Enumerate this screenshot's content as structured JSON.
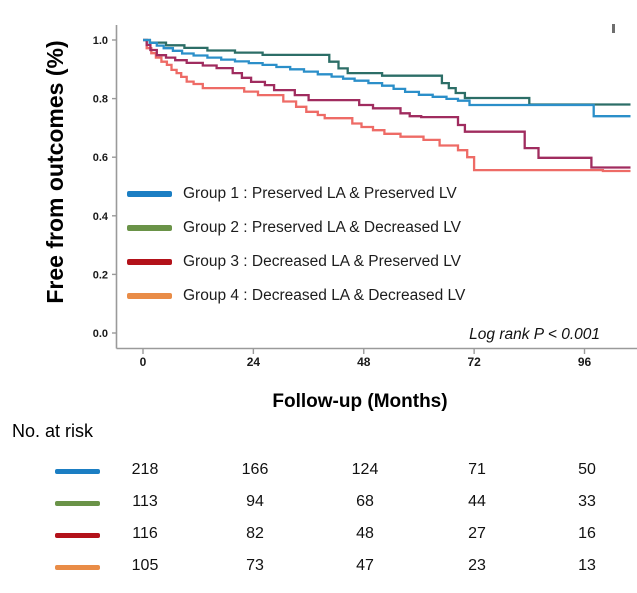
{
  "chart_data": {
    "type": "line",
    "subtype": "kaplan-meier-step",
    "title": "",
    "xlabel": "Follow-up (Months)",
    "ylabel": "Free from outcomes (%)",
    "annotation": "Log rank P < 0.001",
    "xlim": [
      0,
      106
    ],
    "ylim": [
      0.0,
      1.0
    ],
    "x_ticks": [
      0,
      24,
      48,
      72,
      96
    ],
    "y_ticks": [
      0.0,
      0.2,
      0.4,
      0.6,
      0.8,
      1.0
    ],
    "grid": false,
    "legend_position": "inside-lower-left",
    "axis_color": "#9a9a9a",
    "tick_label_color": "#1a1a1a",
    "series": [
      {
        "name": "Group 1 : Preserved LA & Preserved LV",
        "curve_color": "#2b8fc9",
        "legend_color": "#1b7ec3",
        "steps": [
          [
            0,
            1.0
          ],
          [
            1.5,
            0.99
          ],
          [
            3,
            0.981
          ],
          [
            4.5,
            0.972
          ],
          [
            6.5,
            0.963
          ],
          [
            8.5,
            0.954
          ],
          [
            11,
            0.947
          ],
          [
            14,
            0.94
          ],
          [
            17,
            0.933
          ],
          [
            20,
            0.927
          ],
          [
            23,
            0.921
          ],
          [
            26,
            0.915
          ],
          [
            29,
            0.908
          ],
          [
            32,
            0.9
          ],
          [
            35,
            0.892
          ],
          [
            38,
            0.883
          ],
          [
            41,
            0.875
          ],
          [
            43.5,
            0.868
          ],
          [
            46,
            0.861
          ],
          [
            49,
            0.853
          ],
          [
            52,
            0.844
          ],
          [
            54.5,
            0.833
          ],
          [
            57,
            0.823
          ],
          [
            60,
            0.813
          ],
          [
            63,
            0.806
          ],
          [
            66,
            0.799
          ],
          [
            68.5,
            0.793
          ],
          [
            71,
            0.778
          ],
          [
            98,
            0.74
          ],
          [
            106,
            0.74
          ]
        ]
      },
      {
        "name": "Group 2 : Preserved LA & Decreased LV",
        "curve_color": "#2c6e67",
        "legend_color": "#6a9348",
        "steps": [
          [
            0,
            1.0
          ],
          [
            1.5,
            0.991
          ],
          [
            5,
            0.982
          ],
          [
            9,
            0.973
          ],
          [
            14,
            0.964
          ],
          [
            20,
            0.957
          ],
          [
            26,
            0.949
          ],
          [
            40.5,
            0.926
          ],
          [
            42.5,
            0.903
          ],
          [
            44.5,
            0.887
          ],
          [
            52,
            0.878
          ],
          [
            65,
            0.853
          ],
          [
            66.5,
            0.836
          ],
          [
            68,
            0.819
          ],
          [
            70,
            0.802
          ],
          [
            84,
            0.78
          ],
          [
            106,
            0.78
          ]
        ]
      },
      {
        "name": "Group 3 : Decreased LA & Preserved LV",
        "curve_color": "#a02c5f",
        "legend_color": "#b3121a",
        "steps": [
          [
            0,
            1.0
          ],
          [
            0.8,
            0.983
          ],
          [
            1.6,
            0.966
          ],
          [
            3,
            0.948
          ],
          [
            5,
            0.94
          ],
          [
            7,
            0.931
          ],
          [
            9.5,
            0.922
          ],
          [
            13,
            0.913
          ],
          [
            16,
            0.904
          ],
          [
            19.5,
            0.887
          ],
          [
            21.5,
            0.871
          ],
          [
            23.5,
            0.857
          ],
          [
            26.5,
            0.846
          ],
          [
            28.5,
            0.829
          ],
          [
            33,
            0.812
          ],
          [
            36,
            0.795
          ],
          [
            47,
            0.778
          ],
          [
            50,
            0.767
          ],
          [
            56,
            0.75
          ],
          [
            58,
            0.74
          ],
          [
            60.5,
            0.737
          ],
          [
            68.5,
            0.71
          ],
          [
            70,
            0.687
          ],
          [
            83,
            0.631
          ],
          [
            86,
            0.598
          ],
          [
            97.5,
            0.565
          ],
          [
            106,
            0.565
          ]
        ]
      },
      {
        "name": "Group 4 : Decreased LA & Decreased LV",
        "curve_color": "#ee6b66",
        "legend_color": "#e98c47",
        "steps": [
          [
            0,
            1.0
          ],
          [
            0.8,
            0.972
          ],
          [
            1.8,
            0.955
          ],
          [
            2.8,
            0.94
          ],
          [
            4,
            0.926
          ],
          [
            5.2,
            0.915
          ],
          [
            6.2,
            0.898
          ],
          [
            7.3,
            0.887
          ],
          [
            8.3,
            0.874
          ],
          [
            9.5,
            0.858
          ],
          [
            11,
            0.85
          ],
          [
            13,
            0.836
          ],
          [
            22,
            0.824
          ],
          [
            25,
            0.812
          ],
          [
            30.5,
            0.79
          ],
          [
            33.3,
            0.772
          ],
          [
            35.5,
            0.755
          ],
          [
            38,
            0.744
          ],
          [
            39.5,
            0.733
          ],
          [
            45.5,
            0.715
          ],
          [
            47.5,
            0.703
          ],
          [
            50,
            0.692
          ],
          [
            52.5,
            0.68
          ],
          [
            56,
            0.67
          ],
          [
            61,
            0.659
          ],
          [
            64.5,
            0.64
          ],
          [
            68.5,
            0.624
          ],
          [
            70.5,
            0.6
          ],
          [
            72,
            0.556
          ],
          [
            100,
            0.553
          ],
          [
            106,
            0.553
          ]
        ]
      }
    ]
  },
  "risk_table": {
    "label": "No. at risk",
    "columns": [
      0,
      24,
      48,
      72,
      96
    ],
    "rows": [
      {
        "group": "Group 1",
        "color": "#1b7ec3",
        "counts": [
          218,
          166,
          124,
          71,
          50
        ]
      },
      {
        "group": "Group 2",
        "color": "#6a9348",
        "counts": [
          113,
          94,
          68,
          44,
          33
        ]
      },
      {
        "group": "Group 3",
        "color": "#b3121a",
        "counts": [
          116,
          82,
          48,
          27,
          16
        ]
      },
      {
        "group": "Group 4",
        "color": "#e98c47",
        "counts": [
          105,
          73,
          47,
          23,
          13
        ]
      }
    ]
  }
}
